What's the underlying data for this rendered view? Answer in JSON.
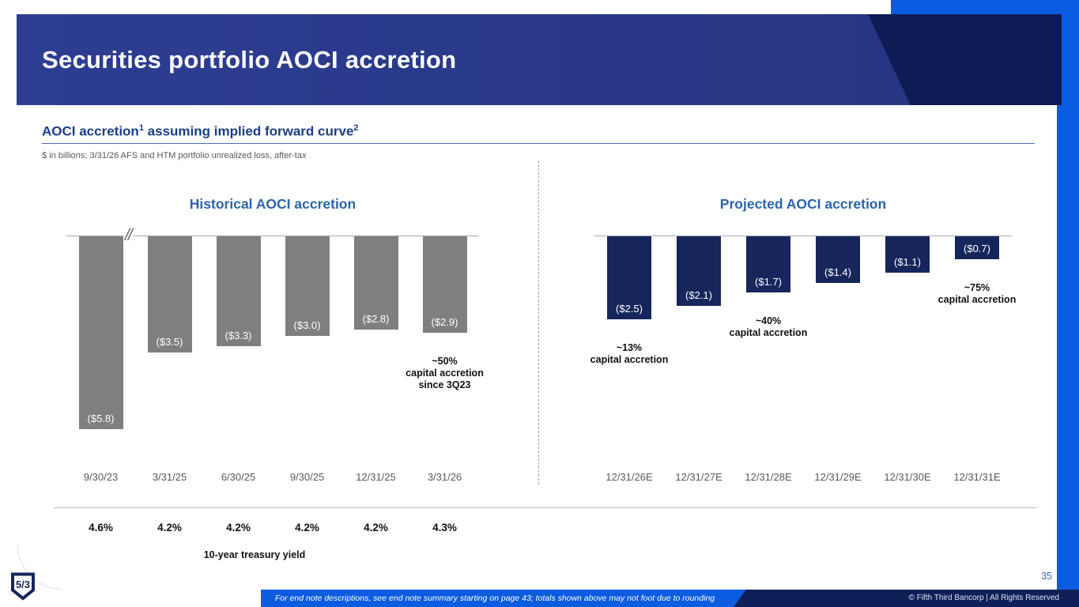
{
  "slide": {
    "title": "Securities portfolio AOCI accretion",
    "page_number": "35"
  },
  "section": {
    "heading_main": "AOCI accretion",
    "sup1": "1",
    "heading_rest": " assuming implied forward curve",
    "sup2": "2",
    "subnote": "$ in billions; 3/31/26 AFS and HTM portfolio unrealized loss, after-tax"
  },
  "chart_data": [
    {
      "type": "bar",
      "title": "Historical AOCI accretion",
      "categories": [
        "9/30/23",
        "3/31/25",
        "6/30/25",
        "9/30/25",
        "12/31/25",
        "3/31/26"
      ],
      "values": [
        -5.8,
        -3.5,
        -3.3,
        -3.0,
        -2.8,
        -2.9
      ],
      "labels": [
        "($5.8)",
        "($3.5)",
        "($3.3)",
        "($3.0)",
        "($2.8)",
        "($2.9)"
      ],
      "bar_color": "#7f7f7f",
      "ylim": [
        -6,
        0
      ],
      "axis_break_after_first": true,
      "annotations": [
        {
          "text": "~50%\ncapital accretion\nsince 3Q23",
          "bar_index": 5
        }
      ]
    },
    {
      "type": "bar",
      "title": "Projected AOCI accretion",
      "categories": [
        "12/31/26E",
        "12/31/27E",
        "12/31/28E",
        "12/31/29E",
        "12/31/30E",
        "12/31/31E"
      ],
      "values": [
        -2.5,
        -2.1,
        -1.7,
        -1.4,
        -1.1,
        -0.7
      ],
      "labels": [
        "($2.5)",
        "($2.1)",
        "($1.7)",
        "($1.4)",
        "($1.1)",
        "($0.7)"
      ],
      "bar_color": "#16265c",
      "ylim": [
        -6,
        0
      ],
      "axis_break_after_first": false,
      "annotations": [
        {
          "text": "~13%\ncapital accretion",
          "bar_index": 0
        },
        {
          "text": "~40%\ncapital accretion",
          "bar_index": 2
        },
        {
          "text": "~75%\ncapital accretion",
          "bar_index": 5
        }
      ]
    }
  ],
  "treasury": {
    "values": [
      "4.6%",
      "4.2%",
      "4.2%",
      "4.2%",
      "4.2%",
      "4.3%"
    ],
    "label": "10-year treasury yield"
  },
  "footer": {
    "endnote": "For end note descriptions, see end note summary starting on page 43; totals shown above may not foot due to rounding",
    "copyright": "© Fifth Third Bancorp | All Rights Reserved",
    "logo_text": "5/3"
  },
  "colors": {
    "accent_blue": "#0b5ce0",
    "banner_blue": "#2a3a8c",
    "banner_navy": "#0e1c55",
    "section_heading_blue": "#1b3d85",
    "chart_title_blue": "#2b63ab",
    "historical_bar_gray": "#7f7f7f",
    "projected_bar_navy": "#16265c"
  }
}
